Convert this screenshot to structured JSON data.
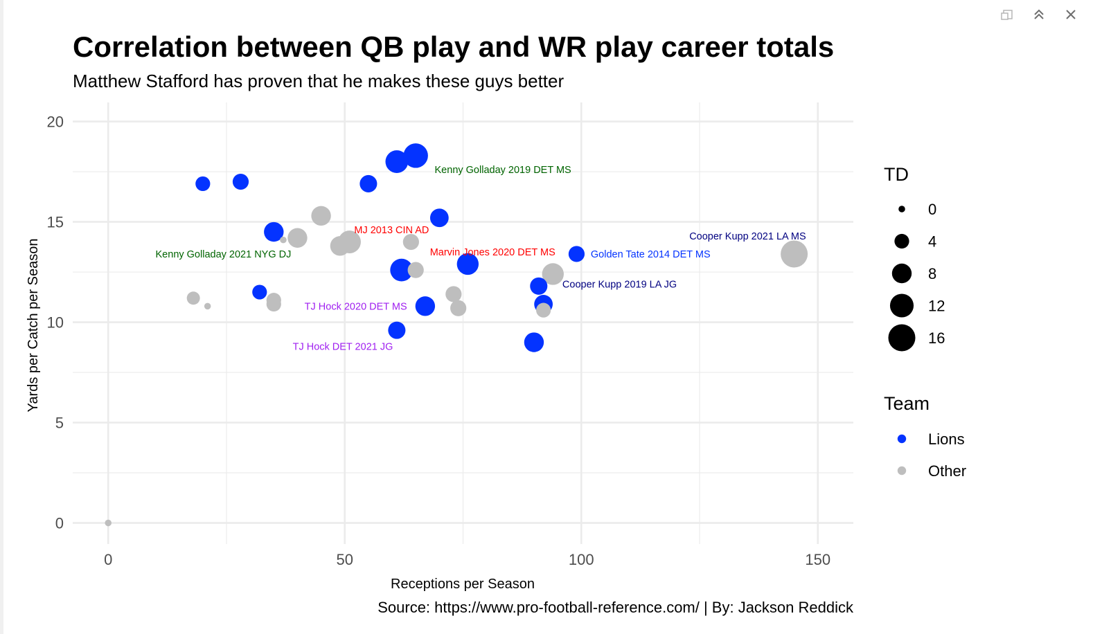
{
  "window_controls": {
    "icons": [
      "window-restore-icon",
      "collapse-up-icon",
      "close-icon"
    ]
  },
  "chart_data": {
    "type": "scatter",
    "title": "Correlation between QB play and WR play career totals",
    "subtitle": "Matthew Stafford has proven that he makes these guys better",
    "xlabel": "Receptions per Season",
    "ylabel": "Yards per Catch per Season",
    "caption": "Source: https://www.pro-football-reference.com/ | By: Jackson Reddick",
    "xlim": [
      -7.5,
      157.5
    ],
    "ylim": [
      -1.05,
      20.95
    ],
    "x_ticks": [
      0,
      50,
      100,
      150
    ],
    "y_ticks": [
      0,
      5,
      10,
      15,
      20
    ],
    "grid": true,
    "legend_placement": "right",
    "colors": {
      "Lions": "#0433ff",
      "Other": "#bebebe",
      "grid": "#ebebeb"
    },
    "legend_size": {
      "title": "TD",
      "entries": [
        {
          "label": "0",
          "value": 0
        },
        {
          "label": "4",
          "value": 4
        },
        {
          "label": "8",
          "value": 8
        },
        {
          "label": "12",
          "value": 12
        },
        {
          "label": "16",
          "value": 16
        }
      ]
    },
    "legend_color": {
      "title": "Team",
      "entries": [
        {
          "label": "Lions",
          "key": "Lions"
        },
        {
          "label": "Other",
          "key": "Other"
        }
      ]
    },
    "points": [
      {
        "x": 20,
        "y": 16.9,
        "td": 4,
        "team": "Lions"
      },
      {
        "x": 28,
        "y": 17.0,
        "td": 5,
        "team": "Lions"
      },
      {
        "x": 32,
        "y": 11.5,
        "td": 4,
        "team": "Lions"
      },
      {
        "x": 35,
        "y": 14.5,
        "td": 8,
        "team": "Lions"
      },
      {
        "x": 55,
        "y": 16.9,
        "td": 6,
        "team": "Lions"
      },
      {
        "x": 61,
        "y": 18.0,
        "td": 11,
        "team": "Lions"
      },
      {
        "x": 65,
        "y": 18.3,
        "td": 13,
        "team": "Lions"
      },
      {
        "x": 70,
        "y": 15.2,
        "td": 7,
        "team": "Lions"
      },
      {
        "x": 62,
        "y": 12.6,
        "td": 11,
        "team": "Lions"
      },
      {
        "x": 76,
        "y": 12.9,
        "td": 10,
        "team": "Lions"
      },
      {
        "x": 67,
        "y": 10.8,
        "td": 8,
        "team": "Lions"
      },
      {
        "x": 61,
        "y": 9.6,
        "td": 6,
        "team": "Lions"
      },
      {
        "x": 91,
        "y": 11.8,
        "td": 6,
        "team": "Lions"
      },
      {
        "x": 92,
        "y": 10.9,
        "td": 7,
        "team": "Lions"
      },
      {
        "x": 90,
        "y": 9.0,
        "td": 8,
        "team": "Lions"
      },
      {
        "x": 99,
        "y": 13.4,
        "td": 5,
        "team": "Lions"
      },
      {
        "x": 0,
        "y": 0.0,
        "td": 0,
        "team": "Other"
      },
      {
        "x": 18,
        "y": 11.2,
        "td": 3,
        "team": "Other"
      },
      {
        "x": 21,
        "y": 10.8,
        "td": 0,
        "team": "Other"
      },
      {
        "x": 35,
        "y": 11.1,
        "td": 4,
        "team": "Other"
      },
      {
        "x": 35,
        "y": 10.9,
        "td": 4,
        "team": "Other"
      },
      {
        "x": 37,
        "y": 14.1,
        "td": 0,
        "team": "Other"
      },
      {
        "x": 40,
        "y": 14.2,
        "td": 8,
        "team": "Other"
      },
      {
        "x": 45,
        "y": 15.3,
        "td": 8,
        "team": "Other"
      },
      {
        "x": 49,
        "y": 13.8,
        "td": 8,
        "team": "Other"
      },
      {
        "x": 51,
        "y": 14.0,
        "td": 11,
        "team": "Other"
      },
      {
        "x": 64,
        "y": 14.0,
        "td": 5,
        "team": "Other"
      },
      {
        "x": 65,
        "y": 12.6,
        "td": 5,
        "team": "Other"
      },
      {
        "x": 73,
        "y": 11.4,
        "td": 5,
        "team": "Other"
      },
      {
        "x": 74,
        "y": 10.7,
        "td": 5,
        "team": "Other"
      },
      {
        "x": 92,
        "y": 10.6,
        "td": 4,
        "team": "Other"
      },
      {
        "x": 94,
        "y": 12.4,
        "td": 10,
        "team": "Other"
      },
      {
        "x": 145,
        "y": 13.4,
        "td": 16,
        "team": "Other"
      }
    ],
    "annotations": [
      {
        "text": "Kenny Golladay 2019 DET MS",
        "x": 69,
        "y": 17.6,
        "color": "#006400",
        "anchor": "start"
      },
      {
        "text": "MJ 2013 CIN AD",
        "x": 52,
        "y": 14.6,
        "color": "#ff0000",
        "anchor": "start"
      },
      {
        "text": "Kenny Golladay 2021 NYG DJ",
        "x": 10,
        "y": 13.4,
        "color": "#006400",
        "anchor": "start"
      },
      {
        "text": "Marvin Jones 2020 DET MS",
        "x": 68,
        "y": 13.5,
        "color": "#ff0000",
        "anchor": "start"
      },
      {
        "text": "Golden Tate 2014 DET MS",
        "x": 102,
        "y": 13.4,
        "color": "#0433ff",
        "anchor": "start"
      },
      {
        "text": "Cooper Kupp 2021 LA MS",
        "x": 147.5,
        "y": 14.3,
        "color": "#000080",
        "anchor": "end"
      },
      {
        "text": "Cooper Kupp 2019 LA JG",
        "x": 96,
        "y": 11.9,
        "color": "#000080",
        "anchor": "start"
      },
      {
        "text": "TJ Hock 2020 DET MS",
        "x": 41.5,
        "y": 10.8,
        "color": "#a020f0",
        "anchor": "start"
      },
      {
        "text": "TJ Hock DET 2021 JG",
        "x": 39,
        "y": 8.8,
        "color": "#a020f0",
        "anchor": "start"
      }
    ]
  }
}
